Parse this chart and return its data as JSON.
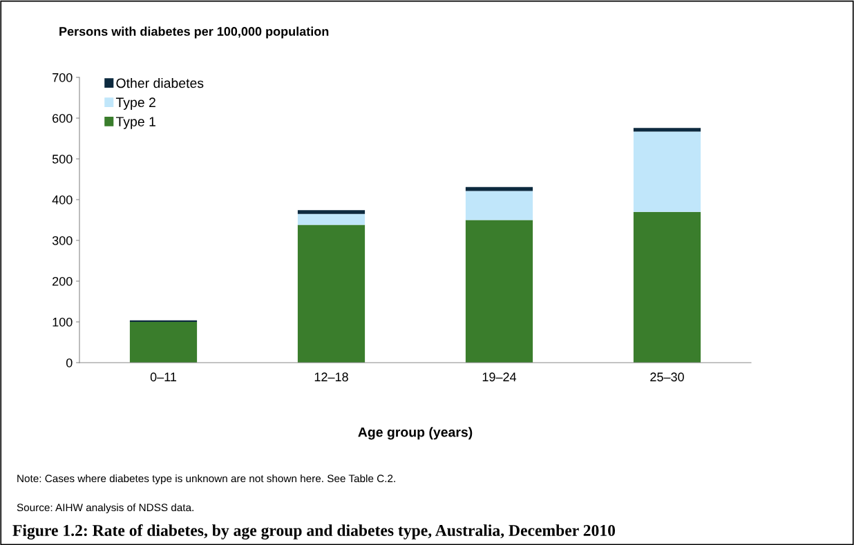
{
  "chart_data": {
    "type": "bar",
    "title": "Figure 1.2: Rate of diabetes, by age group and diabetes type, Australia, December 2010",
    "ylabel": "Persons with diabetes per 100,000 population",
    "xlabel": "Age group (years)",
    "categories": [
      "0–11",
      "12–18",
      "19–24",
      "25–30"
    ],
    "series": [
      {
        "name": "Type 1",
        "color": "#3a7d2c",
        "values": [
          100,
          338,
          350,
          370
        ]
      },
      {
        "name": "Type 2",
        "color": "#c0e6fa",
        "values": [
          0,
          27,
          71,
          197
        ]
      },
      {
        "name": "Other diabetes",
        "color": "#0d2a3f",
        "values": [
          4,
          9,
          10,
          9
        ]
      }
    ],
    "stacked": true,
    "ylim": [
      0,
      700
    ],
    "yticks": [
      0,
      100,
      200,
      300,
      400,
      500,
      600,
      700
    ],
    "grid": false,
    "legend": "top left",
    "annotations": [
      "Note: Cases where diabetes type is unknown are not shown here. See Table C.2.",
      "Source: AIHW analysis of NDSS data."
    ]
  }
}
